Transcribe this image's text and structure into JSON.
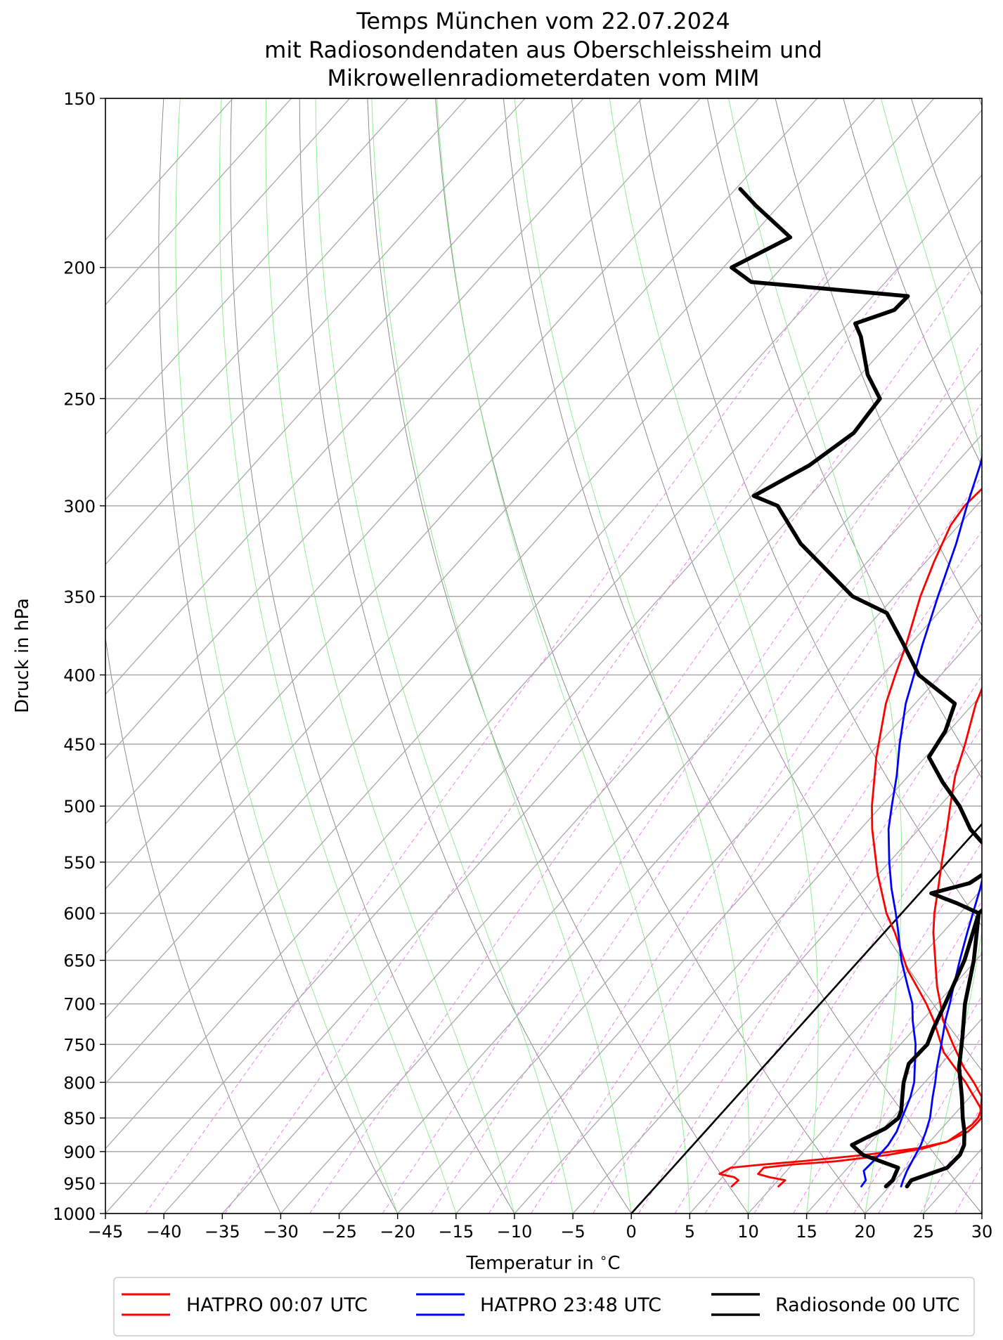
{
  "chart_data": {
    "type": "line",
    "diagram": "skew-T log-p",
    "title_lines": [
      "Temps München vom 22.07.2024",
      "mit Radiosondendaten aus Oberschleissheim und",
      "Mikrowellenradiometerdaten vom MIM"
    ],
    "xlabel": "Temperatur in $^\\circ$C",
    "ylabel": "Druck in hPa",
    "xlim": [
      -45,
      30
    ],
    "ylim": [
      1000,
      150
    ],
    "yscale": "log",
    "x_ticks": [
      "−45",
      "−40",
      "−35",
      "−30",
      "−25",
      "−20",
      "−15",
      "−10",
      "−5",
      "0",
      "5",
      "10",
      "15",
      "20",
      "25",
      "30"
    ],
    "x_tick_values": [
      -45,
      -40,
      -35,
      -30,
      -25,
      -20,
      -15,
      -10,
      -5,
      0,
      5,
      10,
      15,
      20,
      25,
      30
    ],
    "y_ticks": [
      150,
      200,
      250,
      300,
      350,
      400,
      450,
      500,
      550,
      600,
      650,
      700,
      750,
      800,
      850,
      900,
      950,
      1000
    ],
    "grid": true,
    "legend_position": "bottom",
    "colors": {
      "hatpro_0007": "#ff0000",
      "hatpro_2348": "#0000ff",
      "radiosonde": "#000000",
      "dry_adiabat": "#808080",
      "moist_adiabat": "#90ee90",
      "mixing_ratio": "#ee82ee",
      "grid": "#a9a9a9"
    },
    "series": [
      {
        "name": "HATPRO 00:07 UTC",
        "color": "#ff0000",
        "temperature": {
          "p": [
            955,
            945,
            940,
            935,
            925,
            920,
            915,
            905,
            895,
            885,
            870,
            860,
            850,
            840,
            820,
            800,
            780,
            750,
            720,
            700,
            680,
            650,
            620,
            600,
            575,
            550,
            520,
            500,
            475,
            450,
            420,
            400,
            380,
            350,
            330,
            310,
            300,
            290,
            280,
            270,
            265
          ],
          "t": [
            6.5,
            6.6,
            6.0,
            4.5,
            5.0,
            7.5,
            10.5,
            15.5,
            19.5,
            21.5,
            22.0,
            22.3,
            22.3,
            22.0,
            21.0,
            19.2,
            17.2,
            14.5,
            11.8,
            10.3,
            8.7,
            6.5,
            4.2,
            2.8,
            1.2,
            -0.5,
            -2.6,
            -4.1,
            -6.0,
            -7.6,
            -9.8,
            -11.0,
            -12.5,
            -14.2,
            -15.2,
            -15.5,
            -15.4,
            -15.0,
            -14.0,
            -12.0,
            -10.5
          ]
        },
        "dewpoint": {
          "p": [
            955,
            945,
            940,
            935,
            925,
            920,
            915,
            905,
            895,
            885,
            870,
            860,
            850,
            835,
            800,
            760,
            720,
            700,
            660,
            620,
            600,
            560,
            520,
            500,
            460,
            420,
            400,
            380,
            350,
            330,
            310,
            300,
            290,
            280,
            270,
            265
          ],
          "t": [
            10.5,
            10.6,
            9.0,
            7.8,
            7.8,
            10.0,
            13.5,
            17.5,
            20.0,
            21.5,
            22.5,
            22.6,
            22.6,
            21.7,
            18.5,
            14.3,
            11.0,
            9.1,
            4.8,
            0.9,
            -1.3,
            -5.2,
            -9.0,
            -10.8,
            -14.2,
            -17.5,
            -18.9,
            -20.3,
            -22.8,
            -24.3,
            -25.7,
            -26.0,
            -25.8,
            -25.1,
            -23.0,
            -20.7
          ]
        }
      },
      {
        "name": "HATPRO 23:48 UTC",
        "color": "#0000ff",
        "temperature": {
          "p": [
            955,
            945,
            930,
            910,
            890,
            870,
            850,
            820,
            800,
            780,
            750,
            720,
            700,
            680,
            650,
            620,
            600,
            575,
            550,
            520,
            500,
            475,
            450,
            420,
            400,
            380,
            350,
            320,
            300,
            280,
            255
          ],
          "t": [
            21.0,
            20.7,
            20.3,
            19.9,
            19.5,
            18.9,
            18.2,
            16.8,
            15.9,
            14.9,
            13.5,
            12.0,
            11.1,
            10.1,
            8.6,
            7.1,
            6.1,
            4.8,
            3.3,
            1.2,
            -0.1,
            -2.1,
            -3.8,
            -6.0,
            -7.6,
            -9.1,
            -11.6,
            -14.3,
            -16.1,
            -18.0,
            -20.8
          ]
        },
        "dewpoint": {
          "p": [
            955,
            945,
            930,
            910,
            890,
            870,
            850,
            820,
            800,
            780,
            750,
            720,
            700,
            680,
            650,
            620,
            600,
            575,
            550,
            520,
            500,
            475,
            450,
            420,
            400,
            380,
            350,
            320,
            300,
            280,
            255
          ],
          "t": [
            17.6,
            17.5,
            16.6,
            16.7,
            16.7,
            16.4,
            15.8,
            14.9,
            14.1,
            13.0,
            11.3,
            9.2,
            7.9,
            6.2,
            3.6,
            1.2,
            -0.5,
            -2.8,
            -5.0,
            -7.6,
            -9.1,
            -11.0,
            -13.2,
            -15.8,
            -17.3,
            -18.9,
            -21.3,
            -23.8,
            -25.8,
            -27.8,
            -30.8
          ]
        }
      },
      {
        "name": "Radiosonde 00 UTC",
        "color": "#000000",
        "temperature": {
          "p": [
            955,
            945,
            925,
            905,
            890,
            870,
            850,
            820,
            780,
            740,
            700,
            650,
            600,
            590,
            580,
            550,
            520,
            500,
            460,
            420,
            400,
            380,
            350,
            320,
            300,
            280,
            260,
            240,
            225,
            215,
            210,
            205,
            200,
            190,
            180,
            170,
            160,
            150
          ],
          "t": [
            21.5,
            21.4,
            23.5,
            23.6,
            23.2,
            22.2,
            21.0,
            19.3,
            16.8,
            14.7,
            12.4,
            9.8,
            6.6,
            6.8,
            6.3,
            3.7,
            1.4,
            -0.4,
            -3.4,
            -6.1,
            -7.7,
            -9.6,
            -12.8,
            -16.2,
            -18.6,
            -21.5,
            -24.9,
            -28.6,
            -32.0,
            -34.9,
            -35.3,
            -35.0,
            -36.6,
            -37.8,
            -37.6,
            -31.5,
            -32.2,
            -33.6
          ]
        },
        "dewpoint": {
          "p": [
            955,
            945,
            925,
            905,
            890,
            880,
            865,
            850,
            840,
            820,
            800,
            775,
            750,
            730,
            700,
            650,
            600,
            590,
            580,
            570,
            550,
            530,
            520,
            500,
            480,
            460,
            440,
            420,
            400,
            380,
            360,
            350,
            320,
            300,
            295,
            280,
            265,
            250,
            240,
            225,
            220,
            215,
            210,
            205,
            200,
            190,
            180,
            175
          ],
          "t": [
            19.7,
            19.8,
            19.3,
            15.3,
            13.6,
            14.2,
            15.2,
            15.5,
            15.2,
            14.2,
            13.2,
            12.2,
            12.3,
            11.6,
            10.7,
            9.0,
            6.6,
            4.0,
            1.0,
            3.5,
            4.6,
            1.1,
            -0.6,
            -3.3,
            -6.6,
            -9.7,
            -10.3,
            -11.6,
            -16.9,
            -20.5,
            -24.4,
            -28.6,
            -37.1,
            -42.0,
            -44.8,
            -42.4,
            -41.1,
            -41.5,
            -44.4,
            -47.9,
            -49.4,
            -47.1,
            -47.0,
            -61.5,
            -64.3,
            -61.6,
            -67.0,
            -69.6
          ]
        }
      }
    ],
    "reference_lines": {
      "isotherm_0C": "0 °C isotherm (black)",
      "dry_adiabats": "thin grey",
      "moist_adiabats": "thin light green",
      "mixing_ratio_lines": "dashed violet"
    },
    "legend": [
      "HATPRO 00:07 UTC",
      "HATPRO 23:48 UTC",
      "Radiosonde 00 UTC"
    ]
  }
}
